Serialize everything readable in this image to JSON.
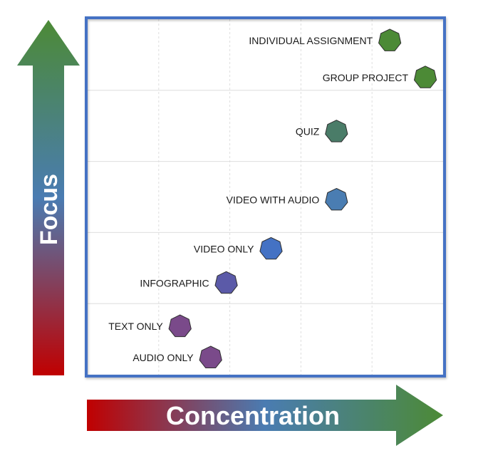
{
  "chart_data": {
    "type": "scatter",
    "title": "",
    "xlabel": "Concentration",
    "ylabel": "Focus",
    "xlim": [
      0,
      5
    ],
    "ylim": [
      0,
      5
    ],
    "grid": true,
    "points": [
      {
        "label": "INDIVIDUAL ASSIGNMENT",
        "x": 4.25,
        "y": 4.7,
        "color": "#4c8a36"
      },
      {
        "label": "GROUP PROJECT",
        "x": 4.75,
        "y": 4.18,
        "color": "#4c8a36"
      },
      {
        "label": "QUIZ",
        "x": 3.5,
        "y": 3.42,
        "color": "#4a7c68"
      },
      {
        "label": "VIDEO WITH AUDIO",
        "x": 3.5,
        "y": 2.46,
        "color": "#4a7db2"
      },
      {
        "label": "VIDEO ONLY",
        "x": 2.58,
        "y": 1.77,
        "color": "#4472c4"
      },
      {
        "label": "INFOGRAPHIC",
        "x": 1.95,
        "y": 1.29,
        "color": "#5b5aa8"
      },
      {
        "label": "TEXT ONLY",
        "x": 1.3,
        "y": 0.68,
        "color": "#7a4a8a"
      },
      {
        "label": "AUDIO ONLY",
        "x": 1.73,
        "y": 0.24,
        "color": "#7a4a8a"
      }
    ]
  },
  "colors": {
    "frame": "#4472c4",
    "grid": "#dedede",
    "gradient_low": "#c00000",
    "gradient_mid": "#4a7cb2",
    "gradient_high": "#4c8a36"
  }
}
